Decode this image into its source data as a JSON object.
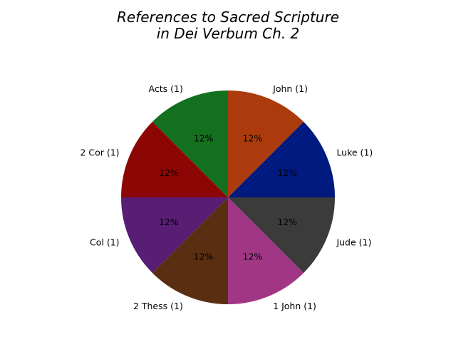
{
  "chart_data": {
    "type": "pie",
    "title_lines": [
      "References to Sacred Scripture",
      "in Dei Verbum Ch. 2"
    ],
    "slices": [
      {
        "label": "Luke (1)",
        "value": 1,
        "pct_label": "12%",
        "color": "#001a80"
      },
      {
        "label": "John (1)",
        "value": 1,
        "pct_label": "12%",
        "color": "#ab3b0c"
      },
      {
        "label": "Acts (1)",
        "value": 1,
        "pct_label": "12%",
        "color": "#13701e"
      },
      {
        "label": "2 Cor (1)",
        "value": 1,
        "pct_label": "12%",
        "color": "#8c0704"
      },
      {
        "label": "Col (1)",
        "value": 1,
        "pct_label": "12%",
        "color": "#571e73"
      },
      {
        "label": "2 Thess (1)",
        "value": 1,
        "pct_label": "12%",
        "color": "#5a2e10"
      },
      {
        "label": "1 John (1)",
        "value": 1,
        "pct_label": "12%",
        "color": "#a13685"
      },
      {
        "label": "Jude (1)",
        "value": 1,
        "pct_label": "12%",
        "color": "#3b3b3b"
      }
    ],
    "start_angle_deg": 0,
    "direction": "counterclockwise"
  }
}
